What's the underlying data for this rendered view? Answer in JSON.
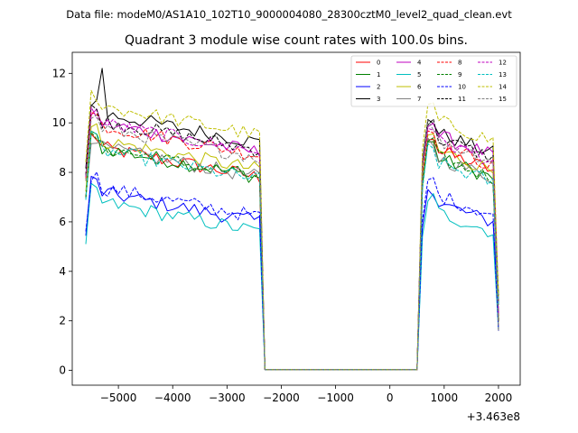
{
  "figure": {
    "suptitle": "Data file: modeM0/AS1A10_102T10_9000004080_28300cztM0_level2_quad_clean.evt"
  },
  "chart_data": {
    "type": "line",
    "title": "Quadrant 3 module wise count rates with 100.0s bins.",
    "xlabel": "",
    "ylabel": "",
    "x_offset_label": "+3.463e8",
    "xlim": [
      -5850,
      2400
    ],
    "ylim": [
      -0.6,
      12.85
    ],
    "xticks": [
      -5000,
      -4000,
      -3000,
      -2000,
      -1000,
      0,
      1000,
      2000
    ],
    "xtick_labels": [
      "−5000",
      "−4000",
      "−3000",
      "−2000",
      "−1000",
      "0",
      "1000",
      "2000"
    ],
    "yticks": [
      0,
      2,
      4,
      6,
      8,
      10,
      12
    ],
    "ytick_labels": [
      "0",
      "2",
      "4",
      "6",
      "8",
      "10",
      "12"
    ],
    "legend_position": "upper-right",
    "segments": {
      "seg1_x": [
        -5600,
        -5500,
        -5400,
        -5300,
        -5200,
        -5100,
        -5000,
        -4900,
        -4800,
        -4700,
        -4600,
        -4500,
        -4400,
        -4300,
        -4200,
        -4100,
        -4000,
        -3900,
        -3800,
        -3700,
        -3600,
        -3500,
        -3400,
        -3300,
        -3200,
        -3100,
        -3000,
        -2900,
        -2800,
        -2700,
        -2600,
        -2500,
        -2400
      ],
      "gap_x": [
        -2300,
        -2200,
        500,
        600
      ],
      "seg2_x": [
        600,
        700,
        800,
        900,
        1000,
        1100,
        1200,
        1300,
        1400,
        1500,
        1600,
        1700,
        1800,
        1900,
        2000
      ]
    },
    "series": [
      {
        "name": "0",
        "color": "#ff0000",
        "dashed": false,
        "base1": 8.2,
        "base2": 8.2
      },
      {
        "name": "1",
        "color": "#008000",
        "dashed": false,
        "base1": 8.2,
        "base2": 7.9
      },
      {
        "name": "2",
        "color": "#0000ff",
        "dashed": false,
        "base1": 6.4,
        "base2": 6.1
      },
      {
        "name": "3",
        "color": "#000000",
        "dashed": false,
        "base1": 9.6,
        "base2": 8.9
      },
      {
        "name": "4",
        "color": "#bf00bf",
        "dashed": false,
        "base1": 9.2,
        "base2": 8.8
      },
      {
        "name": "5",
        "color": "#00bfbf",
        "dashed": false,
        "base1": 6.0,
        "base2": 5.7
      },
      {
        "name": "6",
        "color": "#bfbf00",
        "dashed": false,
        "base1": 8.5,
        "base2": 8.2
      },
      {
        "name": "7",
        "color": "#808080",
        "dashed": false,
        "base1": 8.2,
        "base2": 7.9
      },
      {
        "name": "8",
        "color": "#ff0000",
        "dashed": true,
        "base1": 9.1,
        "base2": 8.4
      },
      {
        "name": "9",
        "color": "#008000",
        "dashed": true,
        "base1": 8.2,
        "base2": 7.9
      },
      {
        "name": "10",
        "color": "#0000ff",
        "dashed": true,
        "base1": 6.6,
        "base2": 6.4
      },
      {
        "name": "11",
        "color": "#000000",
        "dashed": true,
        "base1": 9.3,
        "base2": 8.7
      },
      {
        "name": "12",
        "color": "#bf00bf",
        "dashed": true,
        "base1": 9.2,
        "base2": 8.6
      },
      {
        "name": "13",
        "color": "#00bfbf",
        "dashed": true,
        "base1": 8.1,
        "base2": 7.7
      },
      {
        "name": "14",
        "color": "#bfbf00",
        "dashed": true,
        "base1": 9.9,
        "base2": 9.4
      },
      {
        "name": "15",
        "color": "#808080",
        "dashed": true,
        "base1": 9.0,
        "base2": 8.6
      }
    ]
  }
}
